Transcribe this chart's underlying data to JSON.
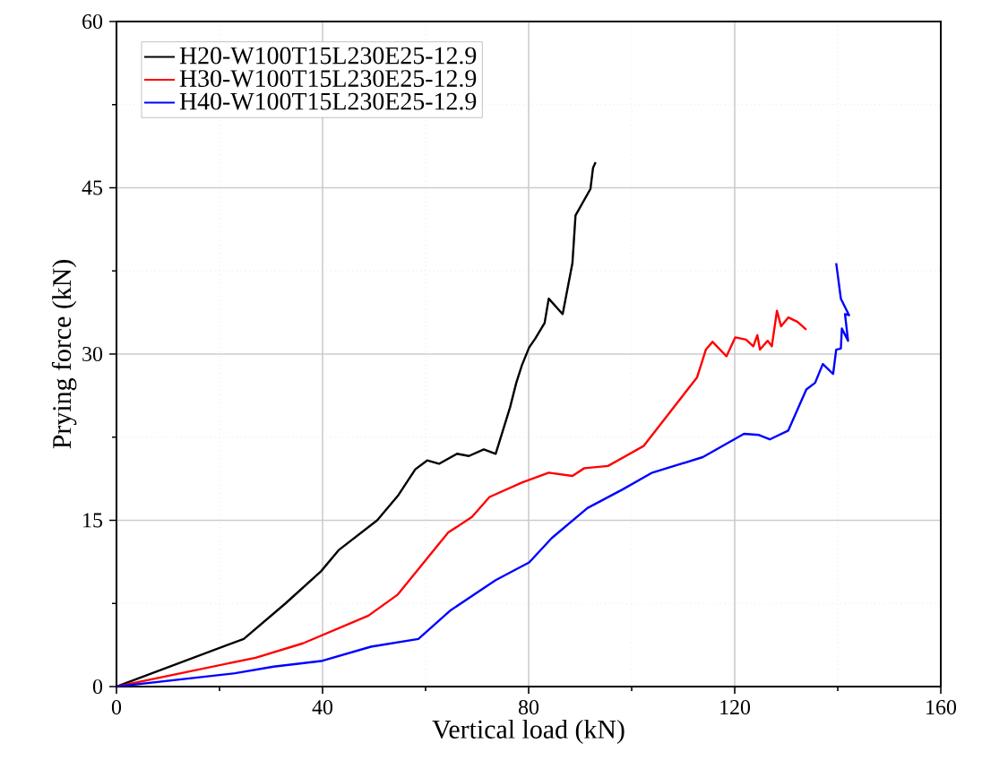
{
  "chart_data": {
    "type": "line",
    "xlabel": "Vertical load (kN)",
    "ylabel": "Prying force (kN)",
    "xlim": [
      0,
      160
    ],
    "ylim": [
      0,
      60
    ],
    "xticks": [
      0,
      40,
      80,
      120,
      160
    ],
    "yticks": [
      0,
      15,
      30,
      45,
      60
    ],
    "grid": true,
    "legend": "top left",
    "marker": "none",
    "line_style": "solid",
    "series": [
      {
        "name": "H20-W100T15L230E25-12.9",
        "color": "#000000",
        "x": [
          0,
          24.7,
          32.8,
          39.7,
          43.1,
          50.6,
          54.6,
          58.0,
          60.3,
          62.6,
          66.1,
          68.4,
          71.3,
          73.6,
          76.4,
          77.6,
          78.7,
          80.1,
          81.3,
          83.1,
          83.9,
          86.6,
          88.5,
          89.1,
          92.0,
          92.5,
          93.0
        ],
        "values": [
          0,
          4.3,
          7.5,
          10.4,
          12.3,
          15.0,
          17.2,
          19.6,
          20.4,
          20.1,
          21.0,
          20.8,
          21.4,
          21.0,
          25.2,
          27.4,
          29.0,
          30.6,
          31.4,
          32.8,
          35.0,
          33.6,
          38.2,
          42.5,
          44.9,
          46.8,
          47.3
        ]
      },
      {
        "name": "H30-W100T15L230E25-12.9",
        "color": "#ff0000",
        "x": [
          0,
          27.0,
          36.2,
          48.9,
          54.6,
          64.4,
          69.0,
          72.4,
          78.7,
          83.9,
          88.5,
          90.8,
          95.4,
          102.3,
          112.7,
          114.4,
          115.7,
          118.4,
          120.1,
          122.2,
          123.6,
          124.4,
          124.9,
          126.4,
          127.2,
          128.2,
          129.0,
          130.4,
          132.2,
          133.9
        ],
        "values": [
          0,
          2.6,
          3.9,
          6.4,
          8.3,
          13.9,
          15.3,
          17.1,
          18.4,
          19.3,
          19.0,
          19.7,
          19.9,
          21.7,
          27.9,
          30.4,
          31.1,
          29.8,
          31.5,
          31.3,
          30.7,
          31.7,
          30.4,
          31.2,
          30.7,
          33.9,
          32.5,
          33.3,
          32.9,
          32.2
        ]
      },
      {
        "name": "H40-W100T15L230E25-12.9",
        "color": "#0000ff",
        "x": [
          0,
          23.0,
          30.5,
          39.7,
          49.4,
          58.6,
          64.9,
          73.6,
          80.1,
          84.5,
          91.4,
          98.3,
          104.0,
          113.8,
          121.8,
          124.7,
          126.8,
          130.4,
          133.9,
          135.6,
          137.1,
          139.1,
          139.7,
          140.6,
          140.8,
          142.0,
          141.4,
          142.2,
          140.6,
          139.7
        ],
        "values": [
          0,
          1.2,
          1.8,
          2.3,
          3.6,
          4.3,
          6.9,
          9.6,
          11.2,
          13.4,
          16.1,
          17.8,
          19.3,
          20.7,
          22.8,
          22.7,
          22.3,
          23.1,
          26.8,
          27.4,
          29.1,
          28.2,
          30.4,
          30.5,
          32.3,
          31.2,
          33.6,
          33.5,
          35.0,
          38.2
        ]
      }
    ]
  }
}
